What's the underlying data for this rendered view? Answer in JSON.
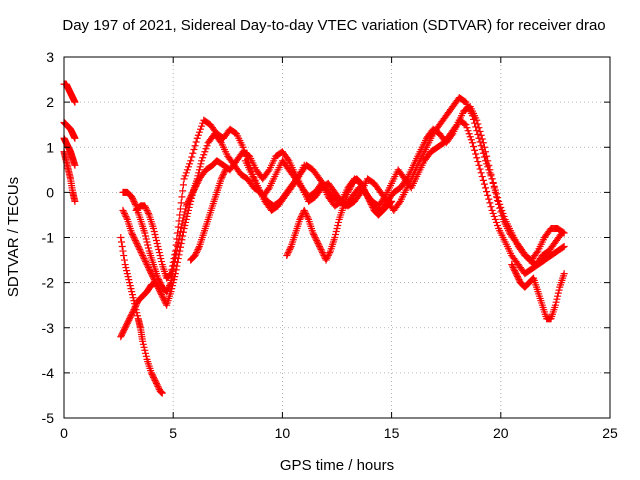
{
  "chart_data": {
    "type": "scatter",
    "title": "Day 197 of 2021, Sidereal Day-to-day VTEC variation (SDTVAR) for receiver drao",
    "xlabel": "GPS time / hours",
    "ylabel": "SDTVAR / TECUs",
    "xlim": [
      0,
      25
    ],
    "ylim": [
      -5,
      3
    ],
    "xticks": [
      "0",
      "5",
      "10",
      "15",
      "20",
      "25"
    ],
    "yticks": [
      "3",
      "2",
      "1",
      "0",
      "-1",
      "-2",
      "-3",
      "-4",
      "-5"
    ],
    "grid": true,
    "marker": "+",
    "color": "#ff0000",
    "series": [
      {
        "name": "s1",
        "x": [
          0.0,
          0.1,
          0.2,
          0.3,
          0.4,
          0.5
        ],
        "y": [
          2.4,
          2.4,
          2.3,
          2.2,
          2.1,
          2.0
        ]
      },
      {
        "name": "s2",
        "x": [
          0.0,
          0.1,
          0.2,
          0.3,
          0.4,
          0.5
        ],
        "y": [
          1.55,
          1.5,
          1.45,
          1.4,
          1.3,
          1.2
        ]
      },
      {
        "name": "s3",
        "x": [
          0.0,
          0.1,
          0.2,
          0.3,
          0.4,
          0.5
        ],
        "y": [
          1.2,
          1.1,
          1.0,
          0.9,
          0.75,
          0.6
        ]
      },
      {
        "name": "s4",
        "x": [
          0.0,
          0.1,
          0.2,
          0.3,
          0.4,
          0.5
        ],
        "y": [
          0.9,
          0.7,
          0.5,
          0.3,
          0.0,
          -0.2
        ]
      },
      {
        "name": "s5",
        "x": [
          2.6,
          2.8,
          3.0,
          3.2,
          3.4,
          3.5,
          3.6,
          3.8,
          4.0,
          4.2,
          4.4,
          4.5
        ],
        "y": [
          -1.0,
          -1.6,
          -2.0,
          -2.4,
          -2.8,
          -3.0,
          -3.3,
          -3.7,
          -4.0,
          -4.2,
          -4.4,
          -4.45
        ]
      },
      {
        "name": "s6",
        "x": [
          2.6,
          2.8,
          3.0,
          3.2,
          3.4,
          3.6,
          3.8,
          4.0,
          4.2
        ],
        "y": [
          -3.2,
          -3.0,
          -2.8,
          -2.6,
          -2.4,
          -2.3,
          -2.2,
          -2.05,
          -2.0
        ]
      },
      {
        "name": "s7",
        "x": [
          2.7,
          2.9,
          3.1,
          3.3,
          3.5,
          3.7,
          3.9,
          4.1,
          4.3,
          4.5,
          4.7,
          4.9,
          5.0,
          5.2,
          5.4,
          5.6,
          5.8,
          6.0,
          6.2,
          6.5,
          6.8,
          7.0,
          7.3,
          7.6,
          7.9,
          8.2,
          8.5,
          8.8,
          9.1,
          9.4,
          9.7,
          10.0,
          10.3,
          10.6,
          10.9,
          11.2,
          11.5,
          11.8,
          12.1,
          12.4,
          12.7,
          13.0,
          13.3,
          13.6,
          13.9,
          14.2,
          14.5,
          14.8,
          15.1,
          15.4,
          15.7,
          16.0,
          16.3,
          16.6,
          16.9,
          17.2,
          17.5,
          17.8,
          18.1,
          18.4,
          18.7,
          19.0,
          19.3,
          19.6,
          19.9,
          20.2,
          20.5,
          20.8,
          21.1,
          21.4,
          21.7,
          22.0,
          22.3,
          22.6,
          22.9
        ],
        "y": [
          0.0,
          0.0,
          -0.1,
          -0.3,
          -0.6,
          -0.9,
          -1.3,
          -1.6,
          -1.9,
          -2.1,
          -2.2,
          -2.0,
          -1.7,
          -1.2,
          -0.7,
          -0.3,
          -0.1,
          0.1,
          0.3,
          0.5,
          0.6,
          0.7,
          0.6,
          0.5,
          0.7,
          0.9,
          0.8,
          0.5,
          0.3,
          0.5,
          0.8,
          0.9,
          0.7,
          0.4,
          0.1,
          -0.1,
          0.0,
          0.2,
          -0.1,
          -0.3,
          -0.2,
          0.1,
          0.3,
          0.2,
          -0.1,
          -0.3,
          -0.4,
          -0.2,
          0.0,
          0.1,
          0.3,
          0.6,
          0.9,
          1.2,
          1.4,
          1.3,
          1.1,
          1.3,
          1.6,
          1.5,
          1.1,
          0.6,
          0.1,
          -0.4,
          -0.8,
          -1.1,
          -1.4,
          -1.6,
          -1.8,
          -1.7,
          -1.6,
          -1.5,
          -1.4,
          -1.3,
          -1.2
        ]
      },
      {
        "name": "s8",
        "x": [
          2.7,
          2.9,
          3.1,
          3.3,
          3.5,
          3.7,
          3.9,
          4.1,
          4.3,
          4.5,
          4.7,
          4.9,
          5.1,
          5.3,
          5.5,
          5.7,
          5.9,
          6.1,
          6.3,
          6.6,
          6.9,
          7.2,
          7.5,
          7.8,
          8.1,
          8.4,
          8.7,
          9.0,
          9.3,
          9.6,
          9.9,
          10.2,
          10.5,
          10.8,
          11.1,
          11.4,
          11.7,
          12.0,
          12.3,
          12.6,
          12.9,
          13.2,
          13.5,
          13.8,
          14.1,
          14.4,
          14.7,
          15.0,
          15.3,
          15.6,
          15.9,
          16.2,
          16.5,
          16.8,
          17.1,
          17.4,
          17.7,
          18.0,
          18.3,
          18.6,
          18.9,
          19.2,
          19.5,
          19.8,
          20.1,
          20.4,
          20.7,
          21.0,
          21.3,
          21.6,
          21.9,
          22.2,
          22.5,
          22.8
        ],
        "y": [
          -0.4,
          -0.6,
          -0.9,
          -1.1,
          -1.3,
          -1.5,
          -1.7,
          -1.9,
          -2.1,
          -2.3,
          -2.5,
          -2.2,
          -1.8,
          -1.3,
          -0.8,
          -0.4,
          0.0,
          0.3,
          0.7,
          1.1,
          1.3,
          1.1,
          0.8,
          0.6,
          0.4,
          0.3,
          0.1,
          0.0,
          -0.2,
          -0.3,
          -0.2,
          0.0,
          0.2,
          0.4,
          0.6,
          0.5,
          0.3,
          0.1,
          -0.1,
          -0.2,
          -0.3,
          -0.1,
          0.1,
          0.0,
          -0.2,
          -0.3,
          -0.1,
          0.2,
          0.5,
          0.3,
          0.1,
          0.4,
          0.7,
          0.9,
          1.0,
          1.1,
          1.3,
          1.5,
          1.8,
          1.9,
          1.6,
          1.1,
          0.5,
          -0.1,
          -0.6,
          -0.9,
          -1.1,
          -1.3,
          -1.5,
          -1.6,
          -1.4,
          -1.3,
          -1.1,
          -0.9
        ]
      },
      {
        "name": "s9",
        "x": [
          3.3,
          3.5,
          3.7,
          3.9,
          4.1,
          4.3,
          4.5,
          4.7,
          4.9,
          5.1,
          5.3,
          5.5,
          5.8,
          6.1,
          6.4,
          6.7,
          7.0,
          7.3,
          7.6,
          7.9,
          8.2,
          8.5,
          8.8,
          9.1,
          9.4,
          9.7,
          10.0,
          10.3,
          10.6,
          10.9,
          11.2,
          11.5,
          11.8,
          12.1,
          12.4,
          12.7,
          13.0,
          13.3,
          13.6,
          13.9,
          14.2,
          14.5,
          14.8,
          15.1,
          15.4,
          15.7,
          16.0,
          16.3,
          16.6,
          16.9,
          17.2,
          17.5,
          17.8,
          18.1,
          18.4,
          18.7,
          19.0,
          19.3,
          19.6,
          19.9,
          20.2,
          20.5,
          20.8,
          21.1,
          21.4,
          21.7,
          22.0,
          22.3,
          22.6,
          22.9
        ],
        "y": [
          -0.4,
          -0.3,
          -0.3,
          -0.5,
          -0.8,
          -1.2,
          -1.6,
          -1.9,
          -1.8,
          -1.3,
          -0.5,
          0.3,
          0.7,
          1.2,
          1.6,
          1.5,
          1.3,
          1.2,
          1.4,
          1.3,
          1.0,
          0.6,
          0.2,
          -0.1,
          0.1,
          0.4,
          0.7,
          0.5,
          0.3,
          0.1,
          -0.2,
          -0.1,
          0.1,
          0.2,
          0.0,
          -0.2,
          -0.3,
          -0.2,
          0.0,
          0.3,
          0.2,
          0.0,
          -0.2,
          -0.4,
          -0.2,
          0.1,
          0.4,
          0.7,
          1.0,
          1.3,
          1.5,
          1.7,
          1.9,
          2.1,
          2.0,
          1.7,
          1.2,
          0.7,
          0.3,
          -0.2,
          -0.6,
          -0.9,
          -1.2,
          -1.4,
          -1.5,
          -1.3,
          -1.0,
          -0.8,
          -0.8,
          -0.9
        ]
      },
      {
        "name": "s10",
        "x": [
          10.2,
          10.4,
          10.6,
          10.8,
          11.0,
          11.2,
          11.4,
          11.6,
          11.8,
          12.0,
          12.2,
          12.4,
          12.6,
          12.8,
          13.0,
          13.2,
          13.4,
          13.6,
          13.8,
          14.0,
          14.2,
          14.4,
          14.6,
          14.8,
          15.0
        ],
        "y": [
          -1.4,
          -1.2,
          -0.9,
          -0.6,
          -0.4,
          -0.6,
          -0.9,
          -1.1,
          -1.3,
          -1.5,
          -1.3,
          -1.0,
          -0.6,
          -0.3,
          0.0,
          0.2,
          0.3,
          0.2,
          0.0,
          -0.2,
          -0.4,
          -0.5,
          -0.4,
          -0.3,
          -0.2
        ]
      },
      {
        "name": "s11",
        "x": [
          20.5,
          20.7,
          20.9,
          21.1,
          21.3,
          21.5,
          21.7,
          21.9,
          22.1,
          22.3,
          22.5,
          22.7,
          22.9
        ],
        "y": [
          -1.6,
          -1.8,
          -2.0,
          -2.1,
          -2.0,
          -1.9,
          -2.2,
          -2.5,
          -2.8,
          -2.8,
          -2.5,
          -2.1,
          -1.8
        ]
      },
      {
        "name": "s12",
        "x": [
          8.3,
          8.6,
          8.9,
          9.2,
          9.5,
          9.8,
          10.1,
          10.4,
          10.7,
          11.0
        ],
        "y": [
          0.7,
          0.4,
          0.1,
          -0.2,
          -0.4,
          -0.3,
          -0.1,
          0.1,
          0.3,
          0.6
        ]
      },
      {
        "name": "s13",
        "x": [
          5.8,
          6.0,
          6.2,
          6.4,
          6.6,
          6.8,
          7.0,
          7.2,
          7.4
        ],
        "y": [
          -1.5,
          -1.4,
          -1.2,
          -0.9,
          -0.6,
          -0.3,
          0.0,
          0.3,
          0.5
        ]
      }
    ]
  }
}
